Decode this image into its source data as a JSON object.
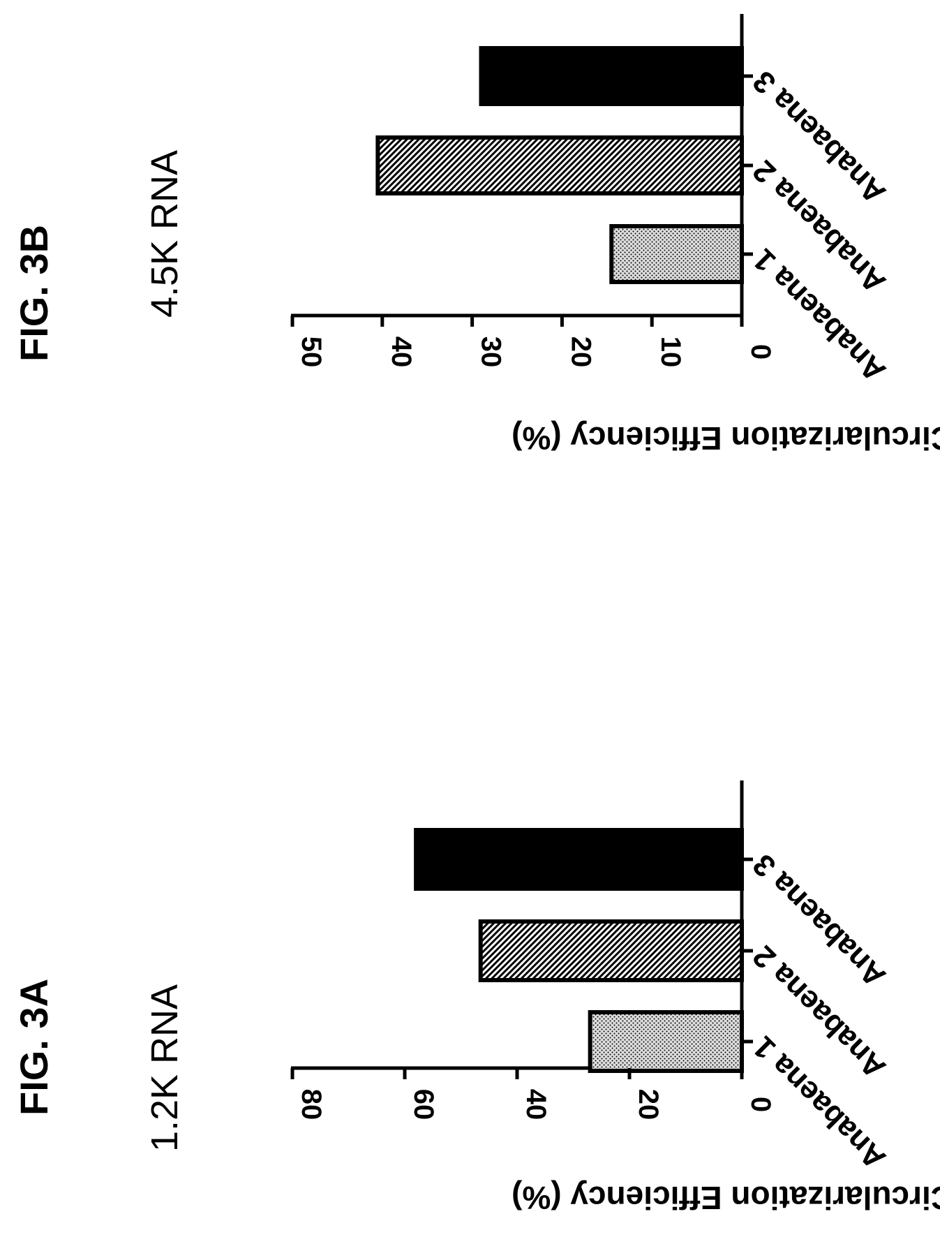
{
  "colors": {
    "ink": "#000000",
    "background": "#ffffff",
    "dot_fill": "#d9d9d9",
    "hatch_fill": "#ffffff"
  },
  "chart_data": [
    {
      "figure_label": "FIG. 3A",
      "type": "bar",
      "title": "1.2K RNA",
      "ylabel": "Circularization Efficiency (%)",
      "xlabel": "",
      "categories": [
        "Anabaena 1",
        "Anabaena 2",
        "Anabaena 3"
      ],
      "values": [
        27,
        46.5,
        58
      ],
      "ylim": [
        0,
        80
      ],
      "yticks": [
        0,
        20,
        40,
        60,
        80
      ],
      "bar_fills": [
        "dots",
        "hatch",
        "solid"
      ],
      "orientation": "rotated-90",
      "grid": false
    },
    {
      "figure_label": "FIG. 3B",
      "type": "bar",
      "title": "4.5K RNA",
      "ylabel": "Circularization Efficiency (%)",
      "xlabel": "",
      "categories": [
        "Anabaena 1",
        "Anabaena 2",
        "Anabaena 3"
      ],
      "values": [
        14.5,
        40.5,
        29
      ],
      "ylim": [
        0,
        50
      ],
      "yticks": [
        0,
        10,
        20,
        30,
        40,
        50
      ],
      "bar_fills": [
        "dots",
        "hatch",
        "solid"
      ],
      "orientation": "rotated-90",
      "grid": false
    }
  ]
}
